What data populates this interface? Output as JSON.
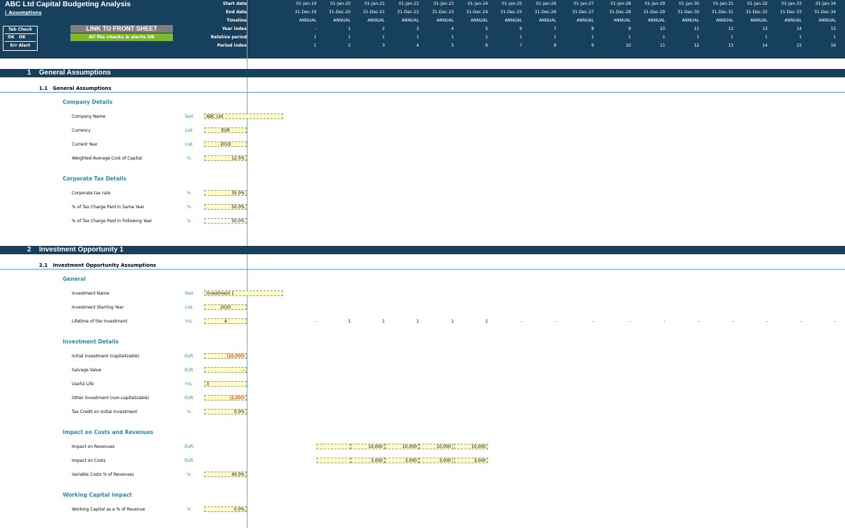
{
  "title": "ABC Ltd Capital Budgeting Analysis",
  "sheet_name": "i_Assumptions",
  "tab_check": {
    "title": "Tab Check",
    "ok1": "OK",
    "ok2": "OK",
    "err": "Err Alert"
  },
  "link_button": "LINK TO FRONT SHEET",
  "checks_status": "All file checks & alerts OK",
  "timeline": {
    "labels": {
      "start": "Start date",
      "end": "End date",
      "timeline": "Timeline",
      "year_index": "Year index",
      "relative": "Relative period",
      "period_index": "Period index"
    },
    "start_dates": [
      "01-Jan-19",
      "01-Jan-20",
      "01-Jan-21",
      "01-Jan-22",
      "01-Jan-23",
      "01-Jan-24",
      "01-Jan-25",
      "01-Jan-26",
      "01-Jan-27",
      "01-Jan-28",
      "01-Jan-29",
      "01-Jan-30",
      "01-Jan-31",
      "01-Jan-32",
      "01-Jan-33",
      "01-Jan-34"
    ],
    "end_dates": [
      "31-Dec-19",
      "31-Dec-20",
      "31-Dec-21",
      "31-Dec-22",
      "31-Dec-23",
      "31-Dec-24",
      "31-Dec-25",
      "31-Dec-26",
      "31-Dec-27",
      "31-Dec-28",
      "31-Dec-29",
      "31-Dec-30",
      "31-Dec-31",
      "31-Dec-32",
      "31-Dec-33",
      "31-Dec-34"
    ],
    "period_type": "ANNUAL",
    "year_index": [
      "-",
      "1",
      "2",
      "3",
      "4",
      "5",
      "6",
      "7",
      "8",
      "9",
      "10",
      "11",
      "12",
      "13",
      "14",
      "15"
    ],
    "relative_period": [
      "1",
      "1",
      "1",
      "1",
      "1",
      "1",
      "1",
      "1",
      "1",
      "1",
      "1",
      "1",
      "1",
      "1",
      "1",
      "1"
    ],
    "period_index": [
      "1",
      "2",
      "3",
      "4",
      "5",
      "6",
      "7",
      "8",
      "9",
      "10",
      "11",
      "12",
      "13",
      "14",
      "15",
      "16"
    ]
  },
  "section1": {
    "num": "1",
    "title": "General Assumptions",
    "sub_num": "1.1",
    "sub_title": "General Assumptions"
  },
  "company": {
    "heading": "Company Details",
    "name_label": "Company Name",
    "name_unit": "Text",
    "name_value": "ABC Ltd",
    "currency_label": "Currency",
    "currency_unit": "List",
    "currency_value": "EUR",
    "year_label": "Current Year",
    "year_unit": "List",
    "year_value": "2019",
    "wacc_label": "Weighted Average Cost of Capital",
    "wacc_unit": "%",
    "wacc_value": "12.5%"
  },
  "tax": {
    "heading": "Corporate Tax Details",
    "rate_label": "Corporate tax rate",
    "rate_unit": "%",
    "rate_value": "35.0%",
    "same_label": "% of Tax Charge Paid in Same Year",
    "same_unit": "%",
    "same_value": "50.0%",
    "follow_label": "% of Tax Charge Paid in Following Year",
    "follow_unit": "%",
    "follow_value": "50.0%"
  },
  "section2": {
    "num": "2",
    "title": "Investment Opportunity 1",
    "sub_num": "2.1",
    "sub_title": "Investment Opportunity Assumptions"
  },
  "general": {
    "heading": "General",
    "name_label": "Investment Name",
    "name_unit": "Text",
    "name_value": "Investment 1",
    "start_label": "Investment Starting Year",
    "start_unit": "List",
    "start_value": "2020",
    "life_label": "Lifetime of the Investment",
    "life_unit": "Yrs.",
    "life_value": "4",
    "life_flags": [
      "-",
      "1",
      "1",
      "1",
      "1",
      "1",
      "-",
      "-",
      "-",
      "-",
      "-",
      "-",
      "-",
      "-",
      "-",
      "-"
    ]
  },
  "invest": {
    "heading": "Investment Details",
    "initial_label": "Initial Investment (capitalizable)",
    "initial_unit": "EUR",
    "initial_value": "(20,000)",
    "salvage_label": "Salvage Value",
    "salvage_unit": "EUR",
    "salvage_value": "-",
    "useful_label": "Useful Life",
    "useful_unit": "Yrs.",
    "useful_value": "3",
    "other_label": "Other Investment (non-capitalizable)",
    "other_unit": "EUR",
    "other_value": "(2,000)",
    "credit_label": "Tax Credit on Initial Investment",
    "credit_unit": "%",
    "credit_value": "0.0%"
  },
  "impact": {
    "heading": "Impact on Costs and Revenues",
    "rev_label": "Impact on Revenues",
    "rev_unit": "EUR",
    "rev_values": [
      "",
      "10,000",
      "10,000",
      "10,000",
      "10,000"
    ],
    "cost_label": "Impact on Costs",
    "cost_unit": "EUR",
    "cost_values": [
      "",
      "3,000",
      "3,000",
      "3,000",
      "3,000"
    ],
    "var_label": "Variable Costs % of Revenues",
    "var_unit": "%",
    "var_value": "40.0%"
  },
  "wc": {
    "heading": "Working Capital Impact",
    "label": "Working Capital as a % of Revenue",
    "unit": "%",
    "value": "0.0%"
  }
}
